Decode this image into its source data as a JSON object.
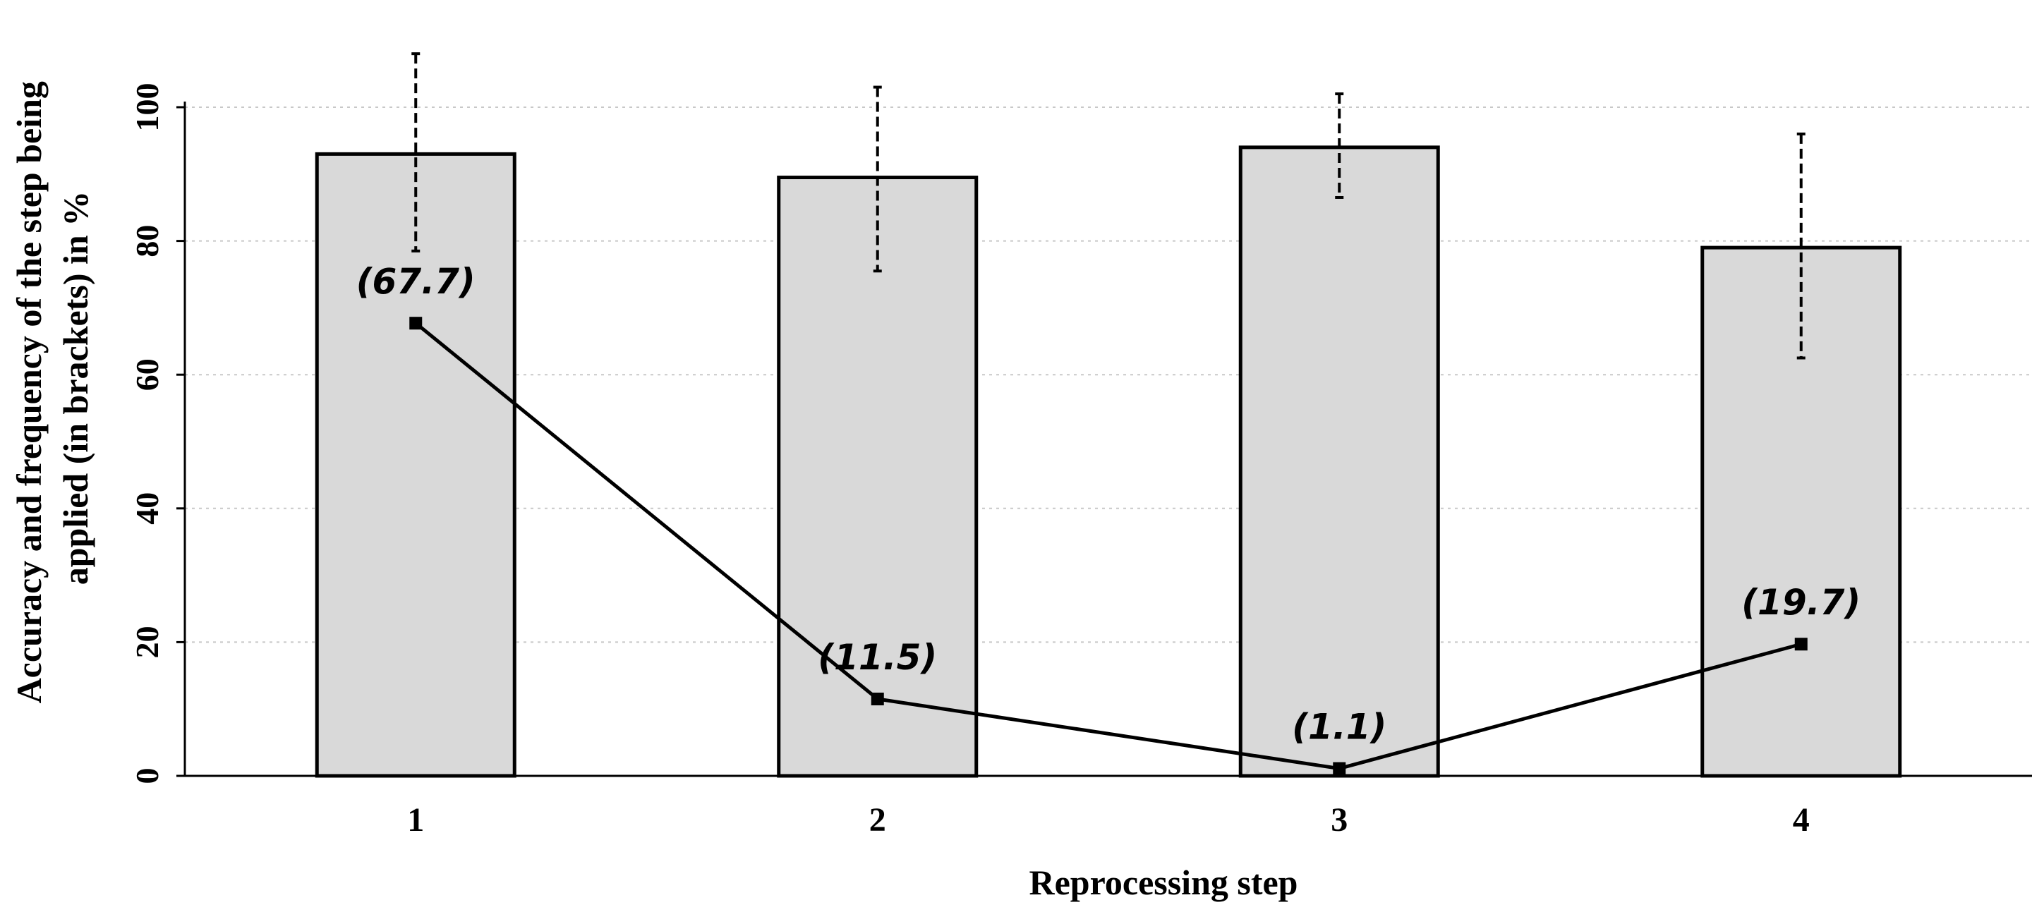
{
  "chart_data": {
    "type": "bar",
    "categories": [
      "1",
      "2",
      "3",
      "4"
    ],
    "series": [
      {
        "kind": "bar",
        "values": [
          93.0,
          89.5,
          94.0,
          79.0
        ],
        "error_low": [
          78.5,
          75.5,
          86.5,
          62.5
        ],
        "error_high": [
          108.0,
          103.0,
          102.0,
          96.0
        ]
      },
      {
        "kind": "line",
        "values": [
          67.7,
          11.5,
          1.1,
          19.7
        ],
        "labels": [
          "(67.7)",
          "(11.5)",
          "(1.1)",
          "(19.7)"
        ]
      }
    ],
    "xlabel": "Reprocessing step",
    "ylabel": [
      "Accuracy and frequency of the step being",
      "applied (in brackets) in %"
    ],
    "ylim": [
      0,
      100
    ],
    "yticks": [
      "0",
      "20",
      "40",
      "60",
      "80",
      "100"
    ],
    "grid": true
  }
}
